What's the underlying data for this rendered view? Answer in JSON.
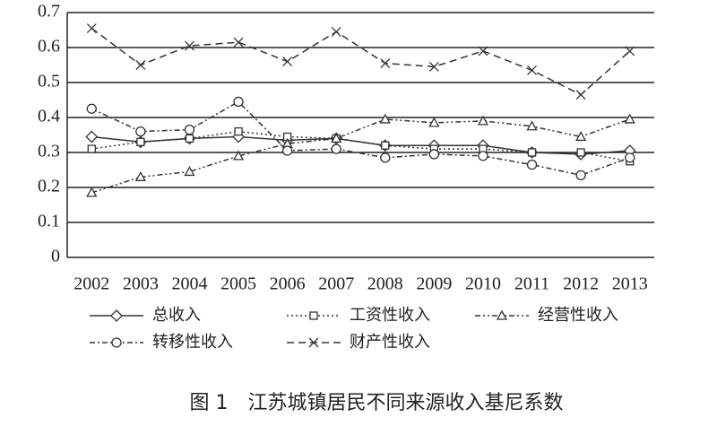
{
  "chart_data": {
    "type": "line",
    "title": "图 1　江苏城镇居民不同来源收入基尼系数",
    "categories": [
      "2002",
      "2003",
      "2004",
      "2005",
      "2006",
      "2007",
      "2008",
      "2009",
      "2010",
      "2011",
      "2012",
      "2013"
    ],
    "series": [
      {
        "name": "总收入",
        "color": "#333333",
        "values": [
          0.345,
          0.33,
          0.34,
          0.345,
          0.335,
          0.34,
          0.32,
          0.32,
          0.32,
          0.3,
          0.295,
          0.305
        ]
      },
      {
        "name": "工资性收入",
        "color": "#333333",
        "values": [
          0.31,
          0.33,
          0.34,
          0.36,
          0.345,
          0.34,
          0.32,
          0.31,
          0.31,
          0.3,
          0.3,
          0.275
        ]
      },
      {
        "name": "经营性收入",
        "color": "#333333",
        "values": [
          0.185,
          0.23,
          0.245,
          0.29,
          0.325,
          0.34,
          0.395,
          0.385,
          0.39,
          0.375,
          0.345,
          0.395
        ]
      },
      {
        "name": "转移性收入",
        "color": "#333333",
        "values": [
          0.425,
          0.36,
          0.365,
          0.445,
          0.305,
          0.31,
          0.285,
          0.295,
          0.29,
          0.265,
          0.235,
          0.285
        ]
      },
      {
        "name": "财产性收入",
        "color": "#333333",
        "values": [
          0.655,
          0.55,
          0.605,
          0.615,
          0.56,
          0.645,
          0.555,
          0.545,
          0.59,
          0.535,
          0.465,
          0.59
        ]
      }
    ],
    "ylim": [
      0,
      0.7
    ],
    "yticks": [
      0,
      0.1,
      0.2,
      0.3,
      0.4,
      0.5,
      0.6,
      0.7
    ],
    "grid": true
  }
}
